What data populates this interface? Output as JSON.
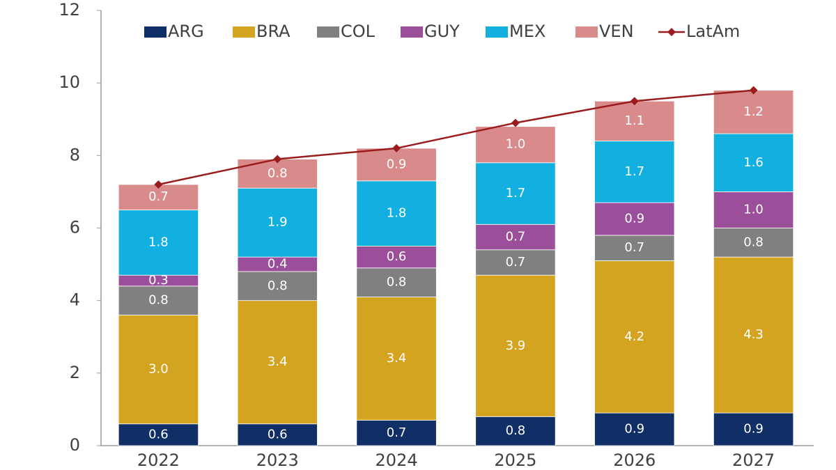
{
  "chart_data": {
    "type": "bar",
    "stacked": true,
    "categories": [
      "2022",
      "2023",
      "2024",
      "2025",
      "2026",
      "2027"
    ],
    "series": [
      {
        "name": "ARG",
        "color": "#0f2f66",
        "values": [
          0.6,
          0.6,
          0.7,
          0.8,
          0.9,
          0.9
        ],
        "value_labels": [
          "0.6",
          "0.6",
          "0.7",
          "0.8",
          "0.9",
          "0.9"
        ]
      },
      {
        "name": "BRA",
        "color": "#d4a421",
        "values": [
          3.0,
          3.4,
          3.4,
          3.9,
          4.2,
          4.3
        ],
        "value_labels": [
          "3.0",
          "3.4",
          "3.4",
          "3.9",
          "4.2",
          "4.3"
        ]
      },
      {
        "name": "COL",
        "color": "#808080",
        "values": [
          0.8,
          0.8,
          0.8,
          0.7,
          0.7,
          0.8
        ],
        "value_labels": [
          "0.8",
          "0.8",
          "0.8",
          "0.7",
          "0.7",
          "0.8"
        ]
      },
      {
        "name": "GUY",
        "color": "#9b4f9b",
        "values": [
          0.3,
          0.4,
          0.6,
          0.7,
          0.9,
          1.0
        ],
        "value_labels": [
          "0.3",
          "0.4",
          "0.6",
          "0.7",
          "0.9",
          "1.0"
        ]
      },
      {
        "name": "MEX",
        "color": "#12b0e0",
        "values": [
          1.8,
          1.9,
          1.8,
          1.7,
          1.7,
          1.6
        ],
        "value_labels": [
          "1.8",
          "1.9",
          "1.8",
          "1.7",
          "1.7",
          "1.6"
        ]
      },
      {
        "name": "VEN",
        "color": "#d98b8b",
        "values": [
          0.7,
          0.8,
          0.9,
          1.0,
          1.1,
          1.2
        ],
        "value_labels": [
          "0.7",
          "0.8",
          "0.9",
          "1.0",
          "1.1",
          "1.2"
        ]
      },
      {
        "name": "LatAm",
        "type": "line",
        "color": "#9b1c1c",
        "values": [
          7.2,
          7.9,
          8.2,
          8.9,
          9.5,
          9.8
        ]
      }
    ],
    "ylim": [
      0,
      12
    ],
    "yticks": [
      0,
      2,
      4,
      6,
      8,
      10,
      12
    ],
    "grid": false,
    "legend": "top"
  }
}
